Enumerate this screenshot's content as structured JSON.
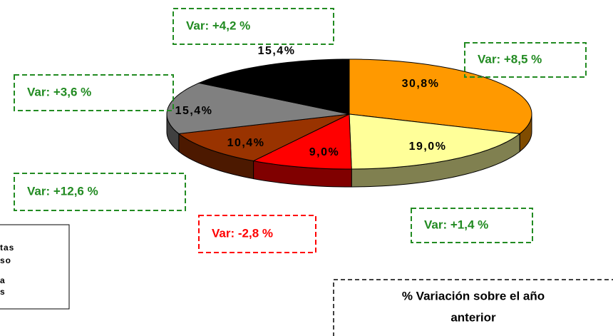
{
  "chart_data": {
    "type": "pie",
    "values": [
      30.8,
      19.0,
      9.0,
      10.4,
      15.4,
      15.4
    ],
    "value_labels": [
      "30,8%",
      "19,0%",
      "9,0%",
      "10,4%",
      "15,4%",
      "15,4%"
    ],
    "colors": [
      "#ff9900",
      "#ffff99",
      "#ff0000",
      "#993300",
      "#808080",
      "#000000"
    ],
    "side_colors": [
      "#804c00",
      "#808050",
      "#800000",
      "#4c1900",
      "#404040",
      "#202020"
    ],
    "annotations": [
      {
        "text": "Var: +8,5 %",
        "color": "#228b22"
      },
      {
        "text": "Var: +1,4 %",
        "color": "#228b22"
      },
      {
        "text": "Var: -2,8 %",
        "color": "#ff0000"
      },
      {
        "text": "Var: +12,6 %",
        "color": "#228b22"
      },
      {
        "text": "Var: +3,6 %",
        "color": "#228b22"
      },
      {
        "text": "Var: +4,2 %",
        "color": "#228b22"
      }
    ],
    "legend_text": [
      "tas",
      "so",
      "a",
      "s"
    ],
    "note": [
      "% Variación sobre el año",
      "anterior"
    ]
  }
}
